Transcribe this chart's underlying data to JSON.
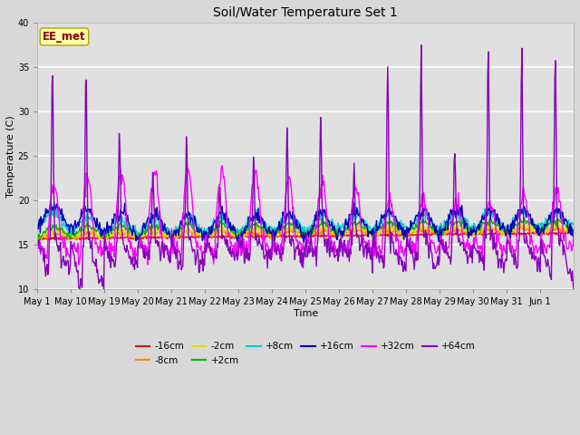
{
  "title": "Soil/Water Temperature Set 1",
  "xlabel": "Time",
  "ylabel": "Temperature (C)",
  "ylim": [
    10,
    40
  ],
  "yticks": [
    10,
    15,
    20,
    25,
    30,
    35,
    40
  ],
  "annotation": "EE_met",
  "fig_bg_color": "#d8d8d8",
  "axes_bg_color": "#e0e0e0",
  "grid_color": "#ffffff",
  "series": [
    {
      "label": "-16cm",
      "color": "#ff0000",
      "lw": 1.0
    },
    {
      "label": "-8cm",
      "color": "#ff8800",
      "lw": 1.0
    },
    {
      "label": "-2cm",
      "color": "#dddd00",
      "lw": 1.0
    },
    {
      "label": "+2cm",
      "color": "#00bb00",
      "lw": 1.0
    },
    {
      "label": "+8cm",
      "color": "#00cccc",
      "lw": 1.0
    },
    {
      "label": "+16cm",
      "color": "#0000bb",
      "lw": 1.0
    },
    {
      "label": "+32cm",
      "color": "#ff00ff",
      "lw": 1.0
    },
    {
      "label": "+64cm",
      "color": "#8800bb",
      "lw": 1.0
    }
  ],
  "xtick_labels": [
    "May 1",
    "May 10",
    "May 19",
    "May 20",
    "May 21",
    "May 22",
    "May 23",
    "May 24",
    "May 25",
    "May 26",
    "May 27",
    "May 28",
    "May 29",
    "May 30",
    "May 31",
    "Jun 1"
  ],
  "n_days": 16,
  "points_per_day": 48
}
